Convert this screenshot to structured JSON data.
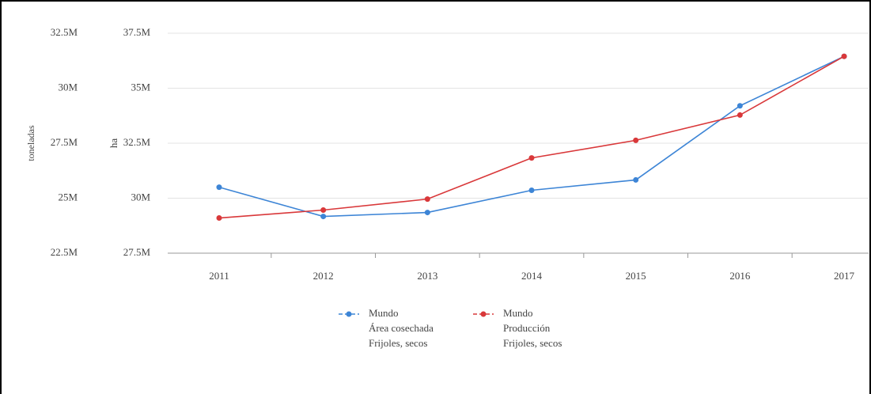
{
  "chart_data": {
    "type": "line",
    "categories": [
      "2011",
      "2012",
      "2013",
      "2014",
      "2015",
      "2016",
      "2017"
    ],
    "ylabel": "ha",
    "y2label": "toneladas",
    "ylim": [
      27500000,
      37500000
    ],
    "yticks": [
      {
        "value": 27500000,
        "label": "27.5M"
      },
      {
        "value": 30000000,
        "label": "30M"
      },
      {
        "value": 32500000,
        "label": "32.5M"
      },
      {
        "value": 35000000,
        "label": "35M"
      },
      {
        "value": 37500000,
        "label": "37.5M"
      }
    ],
    "y2lim": [
      22500000,
      32500000
    ],
    "y2ticks": [
      {
        "value": 22500000,
        "label": "22.5M"
      },
      {
        "value": 25000000,
        "label": "25M"
      },
      {
        "value": 27500000,
        "label": "27.5M"
      },
      {
        "value": 30000000,
        "label": "30M"
      },
      {
        "value": 32500000,
        "label": "32.5M"
      }
    ],
    "grid": true,
    "series": [
      {
        "name": "Mundo\nÁrea cosechada\nFrijoles, secos",
        "color": "#3d85d6",
        "values": [
          30500000,
          29170000,
          29350000,
          30360000,
          30830000,
          34200000,
          36450000
        ]
      },
      {
        "name": "Mundo\nProducción\nFrijoles, secos",
        "color": "#d9383a",
        "axis": "y2",
        "values": [
          24100000,
          24460000,
          24960000,
          26830000,
          27630000,
          28780000,
          31450000
        ]
      }
    ]
  }
}
